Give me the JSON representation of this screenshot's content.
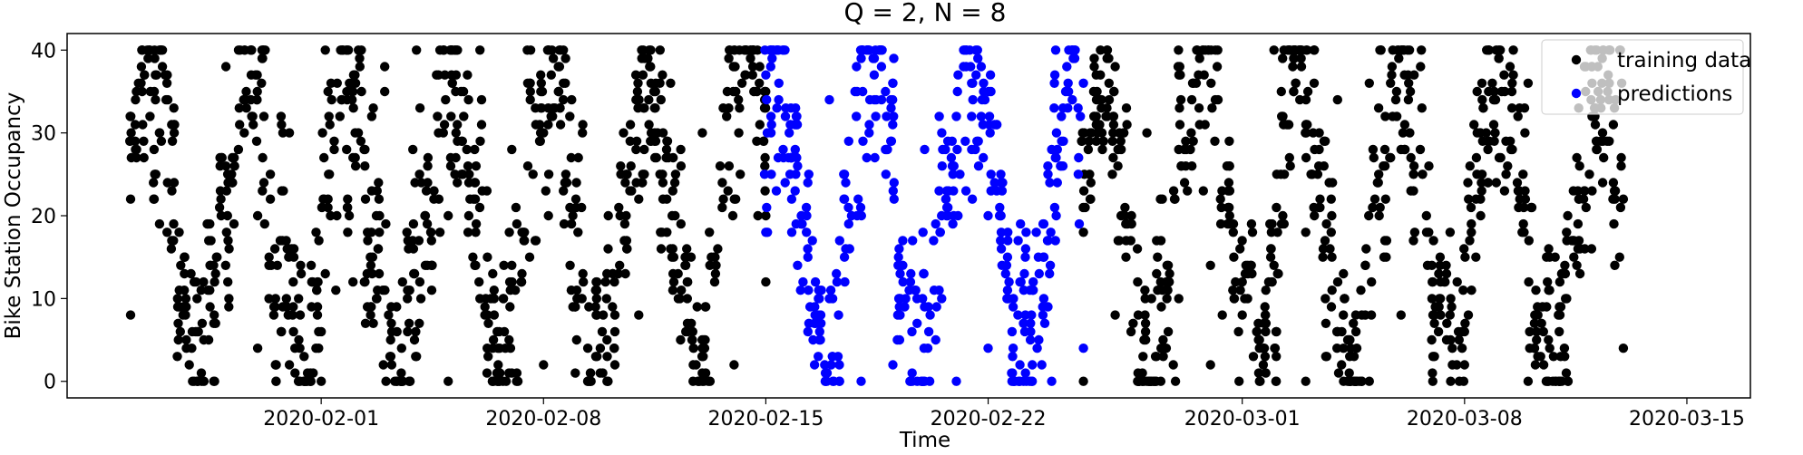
{
  "chart_data": {
    "type": "scatter",
    "title": "Q = 2, N = 8",
    "xlabel": "Time",
    "ylabel": "Bike Station Occupancy",
    "x_range": [
      "2020-01-24",
      "2020-03-17"
    ],
    "ylim": [
      -2,
      42
    ],
    "x_ticks": [
      "2020-02-01",
      "2020-02-08",
      "2020-02-15",
      "2020-02-22",
      "2020-03-01",
      "2020-03-08",
      "2020-03-15"
    ],
    "y_ticks": [
      0,
      10,
      20,
      30,
      40
    ],
    "grid": false,
    "legend_position": "top-right",
    "marker": "filled circle",
    "series": [
      {
        "name": "training data",
        "color": "#000000",
        "segments": [
          {
            "start": "2020-01-26",
            "end": "2020-02-15"
          },
          {
            "start": "2020-02-25",
            "end": "2020-03-13"
          }
        ],
        "points": [
          [
            "2020-01-26",
            8
          ],
          [
            "2020-01-26",
            22
          ],
          [
            "2020-01-27",
            38
          ],
          [
            "2020-01-27",
            40
          ],
          [
            "2020-01-28",
            12
          ],
          [
            "2020-01-28",
            0
          ],
          [
            "2020-01-29",
            26
          ],
          [
            "2020-01-29",
            38
          ],
          [
            "2020-01-30",
            4
          ],
          [
            "2020-01-30",
            20
          ],
          [
            "2020-01-31",
            30
          ],
          [
            "2020-01-31",
            2
          ],
          [
            "2020-02-01",
            6
          ],
          [
            "2020-02-01",
            0
          ],
          [
            "2020-02-02",
            27
          ],
          [
            "2020-02-02",
            12
          ],
          [
            "2020-02-03",
            35
          ],
          [
            "2020-02-03",
            38
          ],
          [
            "2020-02-04",
            3
          ],
          [
            "2020-02-04",
            40
          ],
          [
            "2020-02-05",
            20
          ],
          [
            "2020-02-05",
            0
          ],
          [
            "2020-02-06",
            10
          ],
          [
            "2020-02-06",
            40
          ],
          [
            "2020-02-07",
            14
          ],
          [
            "2020-02-07",
            28
          ],
          [
            "2020-02-08",
            30
          ],
          [
            "2020-02-08",
            2
          ],
          [
            "2020-02-09",
            9
          ],
          [
            "2020-02-09",
            1
          ],
          [
            "2020-02-10",
            5
          ],
          [
            "2020-02-10",
            0
          ],
          [
            "2020-02-11",
            22
          ],
          [
            "2020-02-11",
            8
          ],
          [
            "2020-02-12",
            36
          ],
          [
            "2020-02-12",
            16
          ],
          [
            "2020-02-13",
            0
          ],
          [
            "2020-02-13",
            30
          ],
          [
            "2020-02-14",
            40
          ],
          [
            "2020-02-14",
            2
          ],
          [
            "2020-02-15",
            20
          ],
          [
            "2020-02-15",
            12
          ],
          [
            "2020-02-25",
            18
          ],
          [
            "2020-02-25",
            0
          ],
          [
            "2020-02-26",
            38
          ],
          [
            "2020-02-26",
            8
          ],
          [
            "2020-02-27",
            30
          ],
          [
            "2020-02-27",
            0
          ],
          [
            "2020-02-28",
            10
          ],
          [
            "2020-02-28",
            28
          ],
          [
            "2020-02-29",
            14
          ],
          [
            "2020-02-29",
            2
          ],
          [
            "2020-03-01",
            12
          ],
          [
            "2020-03-01",
            8
          ],
          [
            "2020-03-02",
            40
          ],
          [
            "2020-03-02",
            14
          ],
          [
            "2020-03-03",
            18
          ],
          [
            "2020-03-03",
            0
          ],
          [
            "2020-03-04",
            34
          ],
          [
            "2020-03-04",
            6
          ],
          [
            "2020-03-05",
            36
          ],
          [
            "2020-03-05",
            0
          ],
          [
            "2020-03-06",
            8
          ],
          [
            "2020-03-06",
            28
          ],
          [
            "2020-03-07",
            12
          ],
          [
            "2020-03-07",
            0
          ],
          [
            "2020-03-08",
            6
          ],
          [
            "2020-03-08",
            2
          ],
          [
            "2020-03-09",
            24
          ],
          [
            "2020-03-09",
            40
          ],
          [
            "2020-03-10",
            36
          ],
          [
            "2020-03-10",
            0
          ],
          [
            "2020-03-11",
            12
          ],
          [
            "2020-03-11",
            0
          ],
          [
            "2020-03-12",
            38
          ],
          [
            "2020-03-12",
            16
          ],
          [
            "2020-03-13",
            22
          ],
          [
            "2020-03-13",
            4
          ]
        ]
      },
      {
        "name": "predictions",
        "color": "#0000ff",
        "segments": [
          {
            "start": "2020-02-15",
            "end": "2020-02-25"
          }
        ],
        "points": [
          [
            "2020-02-15",
            37
          ],
          [
            "2020-02-15",
            18
          ],
          [
            "2020-02-16",
            26
          ],
          [
            "2020-02-16",
            14
          ],
          [
            "2020-02-17",
            34
          ],
          [
            "2020-02-17",
            10
          ],
          [
            "2020-02-18",
            39
          ],
          [
            "2020-02-18",
            0
          ],
          [
            "2020-02-19",
            36
          ],
          [
            "2020-02-19",
            2
          ],
          [
            "2020-02-20",
            28
          ],
          [
            "2020-02-20",
            0
          ],
          [
            "2020-02-21",
            32
          ],
          [
            "2020-02-21",
            0
          ],
          [
            "2020-02-22",
            20
          ],
          [
            "2020-02-22",
            4
          ],
          [
            "2020-02-23",
            12
          ],
          [
            "2020-02-23",
            2
          ],
          [
            "2020-02-24",
            28
          ],
          [
            "2020-02-24",
            0
          ],
          [
            "2020-02-25",
            36
          ],
          [
            "2020-02-25",
            4
          ]
        ]
      }
    ]
  }
}
